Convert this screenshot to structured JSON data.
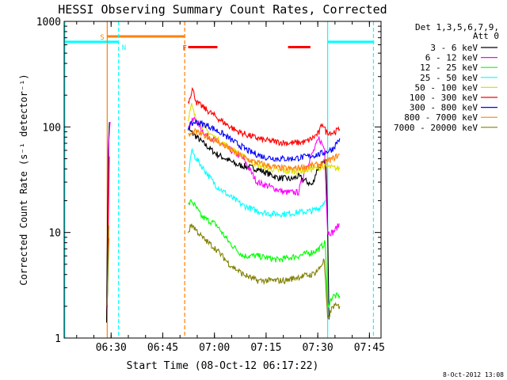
{
  "chart_data": {
    "type": "line",
    "title": "HESSI Observing Summary Count Rates, Corrected",
    "xlabel": "Start Time (08-Oct-12 06:17:22)",
    "ylabel": "Corrected Count Rate (s⁻¹ detector⁻¹)",
    "x_unit": "minutes since start",
    "xlim": [
      0,
      92
    ],
    "ylim": [
      1,
      1000
    ],
    "y_scale": "log",
    "x_ticks": [
      {
        "value": 13.63,
        "label": "06:30"
      },
      {
        "value": 28.63,
        "label": "06:45"
      },
      {
        "value": 43.63,
        "label": "07:00"
      },
      {
        "value": 58.63,
        "label": "07:15"
      },
      {
        "value": 73.63,
        "label": "07:30"
      },
      {
        "value": 88.63,
        "label": "07:45"
      }
    ],
    "y_ticks": [
      {
        "value": 1,
        "label": "1"
      },
      {
        "value": 10,
        "label": "10"
      },
      {
        "value": 100,
        "label": "100"
      },
      {
        "value": 1000,
        "label": "1000"
      }
    ],
    "legend": {
      "position": "right",
      "header": [
        "Det 1,3,5,6,7,9,",
        "Att 0"
      ]
    },
    "series": [
      {
        "name": "3 - 6 keV",
        "color": "#000000",
        "x": [
          12.3,
          12.8,
          13.3,
          36.0,
          40.0,
          44.0,
          50.0,
          56.0,
          62.0,
          66.0,
          68.0,
          70.0,
          72.0,
          73.5,
          74.3,
          76.0,
          76.5,
          76.9
        ],
        "y": [
          1.5,
          60,
          150,
          95,
          72,
          56,
          44,
          40,
          33,
          32,
          34,
          31,
          28,
          40,
          42,
          48,
          12,
          1.5
        ]
      },
      {
        "name": "6 - 12 keV",
        "color": "#ff00ff",
        "x": [
          12.5,
          13.0,
          13.5,
          36.0,
          38.0,
          41.0,
          46.0,
          52.0,
          56.0,
          60.0,
          64.0,
          68.0,
          70.0,
          72.0,
          74.0,
          75.6,
          76.5,
          78.0,
          80.0
        ],
        "y": [
          2,
          80,
          120,
          105,
          120,
          84,
          68,
          50,
          30,
          27,
          24,
          24,
          40,
          55,
          78,
          62,
          10,
          10,
          12
        ]
      },
      {
        "name": "12 - 25 keV",
        "color": "#00ff00",
        "x": [
          12.5,
          13.2,
          36.0,
          37.0,
          40.0,
          44.0,
          48.0,
          52.0,
          56.0,
          62.0,
          68.0,
          72.0,
          74.0,
          75.8,
          76.5,
          78.0,
          80.0
        ],
        "y": [
          2,
          30,
          18,
          20,
          14,
          12,
          8,
          6,
          6,
          5.5,
          6,
          6.5,
          7,
          8,
          2,
          2.5,
          2.5
        ]
      },
      {
        "name": "25 - 50 keV",
        "color": "#00ffff",
        "x": [
          36.0,
          37.0,
          38.0,
          41.0,
          44.0,
          48.0,
          52.0,
          56.0,
          60.0,
          64.0,
          68.0,
          72.0,
          74.0,
          75.8
        ],
        "y": [
          35,
          60,
          52,
          38,
          28,
          22,
          18,
          16,
          15,
          15,
          15.5,
          16,
          17,
          20
        ]
      },
      {
        "name": "50 - 100 keV",
        "color": "#e0e000",
        "x": [
          36.0,
          37.0,
          38.0,
          41.0,
          44.0,
          48.0,
          52.0,
          56.0,
          60.0,
          64.0,
          68.0,
          72.0,
          76.0,
          80.0
        ],
        "y": [
          120,
          160,
          125,
          95,
          78,
          64,
          52,
          44,
          40,
          38,
          38,
          40,
          42,
          40
        ]
      },
      {
        "name": "100 - 300 keV",
        "color": "#ff0000",
        "x": [
          12.5,
          13.3,
          36.0,
          37.2,
          38.5,
          42.0,
          46.0,
          50.0,
          54.0,
          58.0,
          62.0,
          66.0,
          70.0,
          72.0,
          74.0,
          75.0,
          76.0,
          78.0,
          80.0
        ],
        "y": [
          2,
          170,
          170,
          230,
          170,
          140,
          112,
          92,
          82,
          75,
          72,
          70,
          72,
          78,
          88,
          110,
          90,
          88,
          95
        ]
      },
      {
        "name": "300 - 800 keV",
        "color": "#0000ff",
        "x": [
          36.0,
          38.0,
          42.0,
          46.0,
          50.0,
          54.0,
          58.0,
          62.0,
          66.0,
          70.0,
          74.0,
          76.0,
          78.0,
          80.0
        ],
        "y": [
          100,
          112,
          102,
          86,
          70,
          58,
          52,
          50,
          50,
          52,
          55,
          58,
          62,
          78
        ]
      },
      {
        "name": "800 - 7000 keV",
        "color": "#ff8000",
        "x": [
          36.0,
          38.0,
          42.0,
          46.0,
          50.0,
          54.0,
          58.0,
          62.0,
          66.0,
          70.0,
          74.0,
          78.0,
          80.0
        ],
        "y": [
          82,
          90,
          80,
          68,
          56,
          48,
          44,
          41,
          40,
          42,
          44,
          50,
          55
        ]
      },
      {
        "name": "7000 - 20000 keV",
        "color": "#808000",
        "x": [
          12.5,
          13.2,
          36.0,
          37.0,
          40.0,
          44.0,
          48.0,
          52.0,
          56.0,
          60.0,
          64.0,
          68.0,
          72.0,
          74.0,
          75.5,
          76.5,
          78.0,
          80.0
        ],
        "y": [
          2,
          20,
          10,
          12,
          9,
          7,
          5,
          4,
          3.5,
          3.5,
          3.5,
          3.8,
          4,
          4.5,
          5.5,
          1.5,
          2,
          2
        ]
      }
    ],
    "flags": [
      {
        "label": "S",
        "color": "#ff8000",
        "segments": [
          [
            12.5,
            35.0
          ]
        ],
        "level": 720
      },
      {
        "label": "N",
        "color": "#00ffff",
        "segments": [
          [
            0,
            15.8
          ],
          [
            76.5,
            90.0
          ]
        ],
        "level": 640
      },
      {
        "label": "F",
        "color": "#ff0000",
        "segments": [
          [
            36.0,
            44.5
          ],
          [
            65.0,
            71.5
          ]
        ],
        "level": 570
      }
    ],
    "vlines": [
      {
        "x": 0.2,
        "color": "#00ffff",
        "style": "solid"
      },
      {
        "x": 15.8,
        "color": "#00ffff",
        "style": "dash"
      },
      {
        "x": 12.5,
        "color": "#ff8000",
        "style": "solid"
      },
      {
        "x": 35.0,
        "color": "#ff8000",
        "style": "dash"
      },
      {
        "x": 76.5,
        "color": "#00ffff",
        "style": "solid"
      },
      {
        "x": 89.8,
        "color": "#00ffff",
        "style": "dash"
      }
    ]
  },
  "footer": {
    "timestamp": "8-Oct-2012 13:08"
  }
}
